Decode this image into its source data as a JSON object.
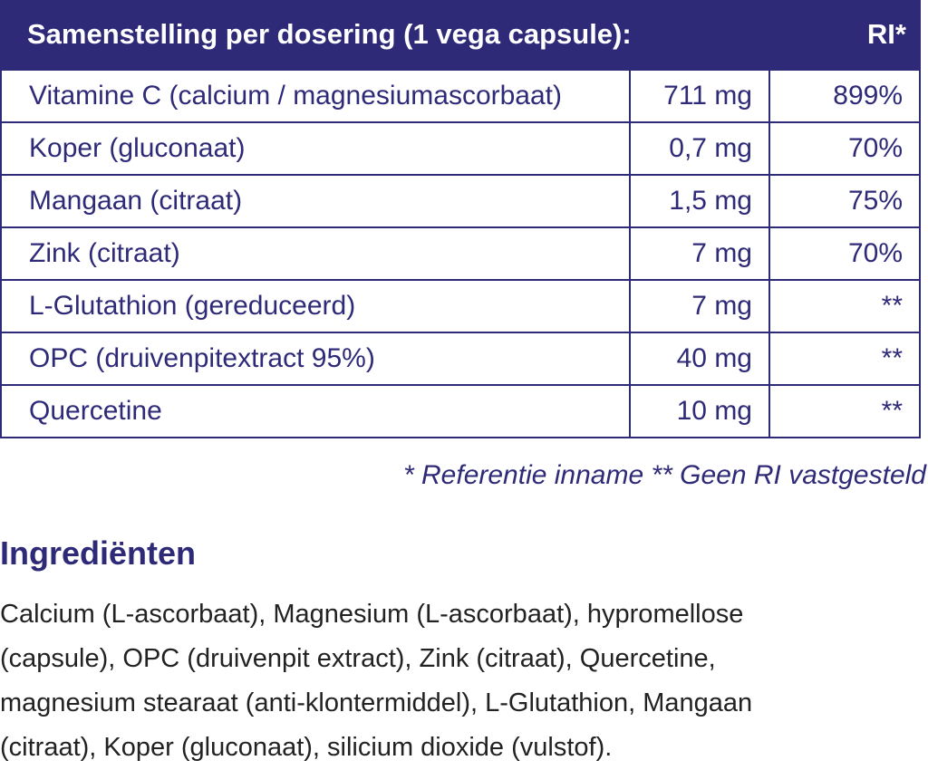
{
  "table": {
    "header": [
      "Samenstelling per dosering (1 vega capsule):",
      "RI*"
    ],
    "rows": [
      [
        "Vitamine C (calcium / magnesiumascorbaat)",
        "711 mg",
        "899%"
      ],
      [
        "Koper (gluconaat)",
        "0,7 mg",
        "70%"
      ],
      [
        "Mangaan (citraat)",
        "1,5 mg",
        "75%"
      ],
      [
        "Zink (citraat)",
        "7 mg",
        "70%"
      ],
      [
        "L-Glutathion (gereduceerd)",
        "7 mg",
        "**"
      ],
      [
        "OPC (druivenpitextract 95%)",
        "40 mg",
        "**"
      ],
      [
        "Quercetine",
        "10 mg",
        "**"
      ]
    ],
    "footnote": "* Referentie inname  ** Geen RI vastgesteld"
  },
  "ingredients": {
    "title": "Ingrediënten",
    "lines": [
      "Calcium (L-ascorbaat), Magnesium (L-ascorbaat), hypromellose",
      "(capsule), OPC (druivenpit extract), Zink (citraat), Quercetine,",
      "magnesium stearaat (anti-klontermiddel), L-Glutathion, Mangaan",
      "(citraat), Koper (gluconaat), silicium dioxide (vulstof)."
    ]
  }
}
